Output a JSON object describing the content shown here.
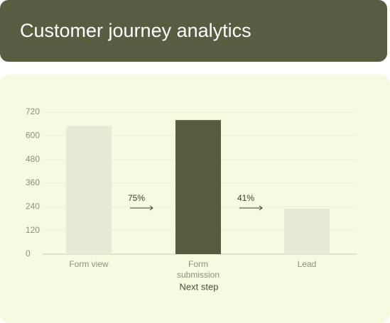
{
  "header": {
    "title": "Customer journey analytics"
  },
  "chart_data": {
    "type": "bar",
    "categories": [
      "Form view",
      "Form submission",
      "Lead"
    ],
    "values": [
      650,
      680,
      230
    ],
    "colors": [
      "#e6e9d3",
      "#585c3f",
      "#e6e9d3"
    ],
    "ylim": [
      0,
      720
    ],
    "yticks": [
      0,
      120,
      240,
      360,
      480,
      600,
      720
    ],
    "grid": true,
    "xlabel": "Next step",
    "annotations": [
      "75%",
      "41%"
    ]
  }
}
